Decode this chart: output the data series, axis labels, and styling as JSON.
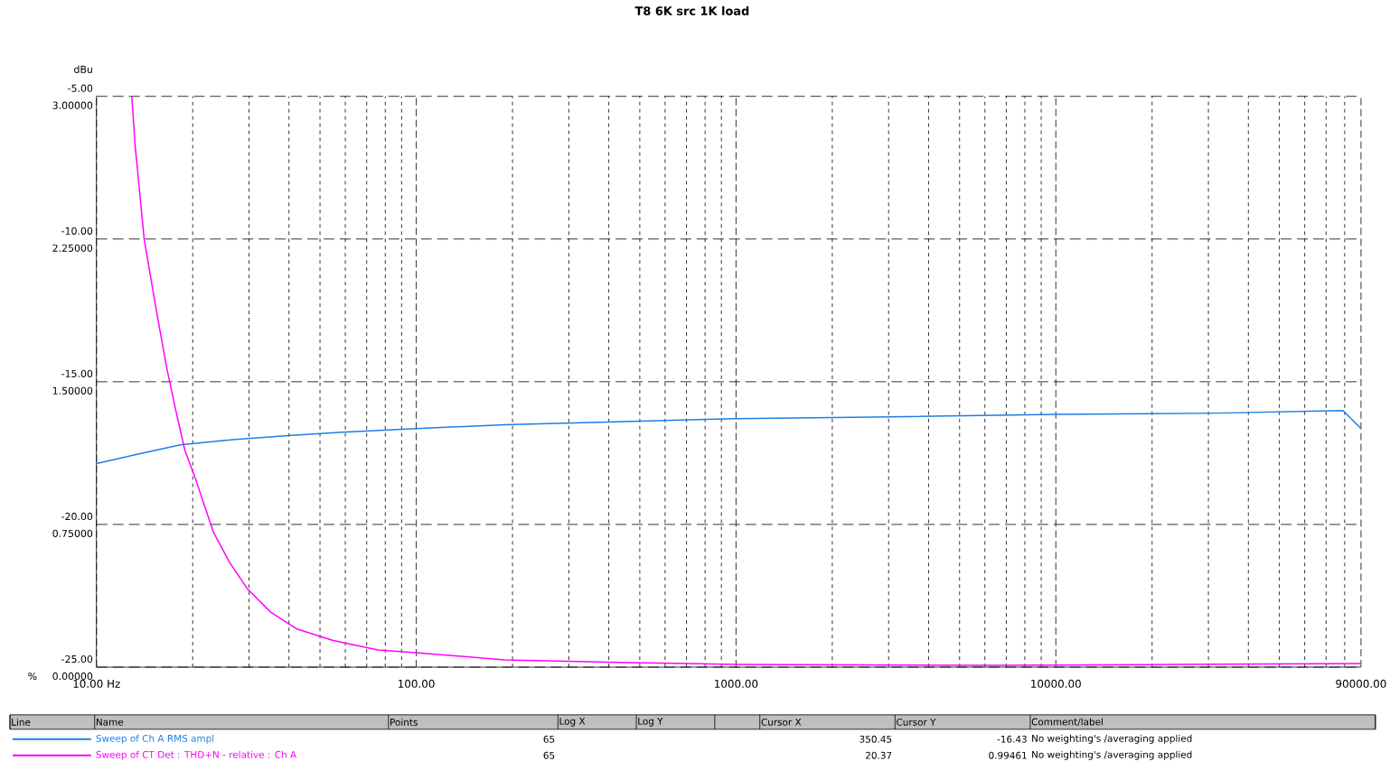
{
  "chart_data": {
    "type": "line",
    "title": "T8 6K src 1K load",
    "ylabel": "dBu",
    "y2label": "%",
    "log": "x",
    "grid": true,
    "legend": "bottom",
    "xlim": [
      10,
      90000
    ],
    "xticks": [
      {
        "value": 10,
        "label": "10.00 Hz"
      },
      {
        "value": 100,
        "label": "100.00"
      },
      {
        "value": 1000,
        "label": "1000.00"
      },
      {
        "value": 10000,
        "label": "10000.00"
      },
      {
        "value": 90000,
        "label": "90000.00"
      }
    ],
    "ylim": [
      -25,
      -5
    ],
    "yticks": [
      {
        "value": -25,
        "label": "-25.00"
      },
      {
        "value": -20,
        "label": "-20.00"
      },
      {
        "value": -15,
        "label": "-15.00"
      },
      {
        "value": -10,
        "label": "-10.00"
      },
      {
        "value": -5,
        "label": "-5.00"
      }
    ],
    "y2lim": [
      0,
      3
    ],
    "y2ticks": [
      {
        "value": 0,
        "label": "0.00000"
      },
      {
        "value": 0.75,
        "label": "0.75000"
      },
      {
        "value": 1.5,
        "label": "1.50000"
      },
      {
        "value": 2.25,
        "label": "2.25000"
      },
      {
        "value": 3,
        "label": "3.00000"
      }
    ],
    "series": [
      {
        "name": "Sweep of Ch A RMS ampl",
        "color": "#1a7fe6",
        "x": [
          10,
          13.2,
          18.3,
          25.3,
          39.8,
          58.7,
          100,
          189,
          350,
          1000,
          3070,
          10000,
          31700,
          79000,
          90000
        ],
        "values": [
          -17.87,
          -17.56,
          -17.21,
          -17.05,
          -16.89,
          -16.77,
          -16.64,
          -16.51,
          -16.43,
          -16.29,
          -16.23,
          -16.14,
          -16.1,
          -16.01,
          -16.64
        ]
      },
      {
        "name": "Sweep of CT Det : THD+N - relative : Ch A",
        "color": "#ff00ff",
        "axis": "y2",
        "x": [
          12.9,
          13.2,
          14.1,
          15.3,
          16.6,
          17.7,
          18.9,
          20.4,
          23.2,
          26.1,
          29.7,
          35,
          42.4,
          55,
          76,
          100,
          189,
          469,
          1000,
          6250,
          22960,
          90000
        ],
        "values": [
          3.0,
          2.75,
          2.25,
          1.9,
          1.57,
          1.35,
          1.14,
          0.99,
          0.71,
          0.55,
          0.41,
          0.29,
          0.2,
          0.14,
          0.09,
          0.076,
          0.038,
          0.024,
          0.014,
          0.01,
          0.014,
          0.019
        ]
      }
    ],
    "annotations": [
      "Line",
      "Name",
      "Points",
      "Log X",
      "Log Y",
      "Cursor X",
      "Cursor Y",
      "Comment/label",
      "65",
      "350.45",
      "-16.43",
      "No weighting's /averaging applied",
      "65",
      "20.37",
      "0.99461",
      "No weighting's /averaging applied"
    ]
  }
}
